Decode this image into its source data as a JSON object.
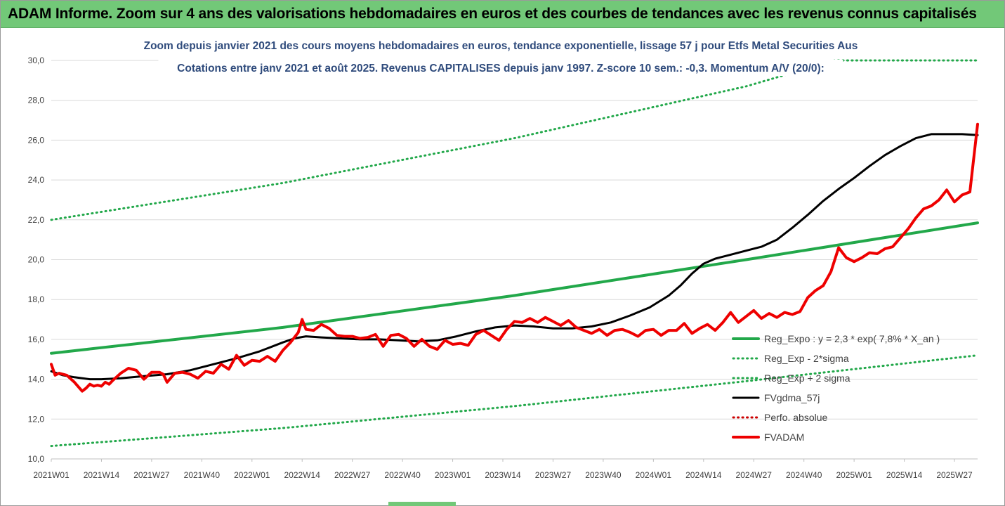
{
  "banner": {
    "title": "ADAM Informe. Zoom sur 4 ans des valorisations hebdomadaires en euros et des courbes de tendances avec les revenus connus capitalisés",
    "color": "#72c878"
  },
  "chart_data": {
    "type": "line",
    "title_line1": "Zoom depuis janvier 2021 des cours moyens hebdomadaires en euros, tendance exponentielle, lissage 57 j pour Etfs Metal Securities Aus",
    "title_line2": "Cotations entre janv 2021 et août 2025.  Revenus CAPITALISES depuis janv 1997. Z-score 10 sem.: -0,3. Momentum A/V (20/0):",
    "xlabel": "",
    "ylabel": "",
    "ylim": [
      10,
      30
    ],
    "yticks": [
      "10,0",
      "12,0",
      "14,0",
      "16,0",
      "18,0",
      "20,0",
      "22,0",
      "24,0",
      "26,0",
      "28,0",
      "30,0"
    ],
    "xlim": [
      0,
      240
    ],
    "xticks": [
      {
        "label": "2021W01",
        "x": 0
      },
      {
        "label": "2021W14",
        "x": 13
      },
      {
        "label": "2021W27",
        "x": 26
      },
      {
        "label": "2021W40",
        "x": 39
      },
      {
        "label": "2022W01",
        "x": 52
      },
      {
        "label": "2022W14",
        "x": 65
      },
      {
        "label": "2022W27",
        "x": 78
      },
      {
        "label": "2022W40",
        "x": 91
      },
      {
        "label": "2023W01",
        "x": 104
      },
      {
        "label": "2023W14",
        "x": 117
      },
      {
        "label": "2023W27",
        "x": 130
      },
      {
        "label": "2023W40",
        "x": 143
      },
      {
        "label": "2024W01",
        "x": 156
      },
      {
        "label": "2024W14",
        "x": 169
      },
      {
        "label": "2024W27",
        "x": 182
      },
      {
        "label": "2024W40",
        "x": 195
      },
      {
        "label": "2025W01",
        "x": 208
      },
      {
        "label": "2025W14",
        "x": 221
      },
      {
        "label": "2025W27",
        "x": 234
      }
    ],
    "grid": true,
    "legend_position": "bottom-right",
    "series": [
      {
        "name": "Reg_Expo : y = 2,3 * exp( 7,8% *  X_an )",
        "color": "#22a84a",
        "style": "solid",
        "x": [
          0,
          60,
          120,
          180,
          240
        ],
        "values": [
          15.3,
          16.6,
          18.2,
          20.0,
          21.85
        ]
      },
      {
        "name": "Reg_Exp - 2*sigma",
        "color": "#22a84a",
        "style": "dotted",
        "x": [
          0,
          60,
          120,
          180,
          240
        ],
        "values": [
          10.65,
          11.55,
          12.65,
          13.9,
          15.2
        ]
      },
      {
        "name": "Reg_Exp + 2 sigma",
        "color": "#22a84a",
        "style": "dotted",
        "x": [
          0,
          60,
          120,
          180,
          203,
          240
        ],
        "values": [
          22.0,
          23.85,
          26.1,
          28.7,
          30.0,
          30.0
        ]
      },
      {
        "name": "FVgdma_57j",
        "color": "#000000",
        "style": "solid",
        "x": [
          0,
          3,
          6,
          10,
          13,
          18,
          24,
          30,
          36,
          42,
          48,
          54,
          60,
          63,
          66,
          70,
          75,
          80,
          85,
          90,
          95,
          100,
          105,
          110,
          115,
          120,
          125,
          130,
          135,
          140,
          145,
          150,
          155,
          160,
          163,
          166,
          169,
          172,
          176,
          180,
          184,
          188,
          192,
          196,
          200,
          204,
          208,
          212,
          216,
          220,
          224,
          228,
          232,
          236,
          240
        ],
        "values": [
          14.4,
          14.2,
          14.1,
          14.0,
          14.0,
          14.05,
          14.15,
          14.25,
          14.45,
          14.75,
          15.05,
          15.4,
          15.85,
          16.05,
          16.15,
          16.1,
          16.05,
          16.0,
          16.0,
          15.95,
          15.9,
          15.95,
          16.15,
          16.4,
          16.6,
          16.7,
          16.65,
          16.55,
          16.55,
          16.65,
          16.85,
          17.2,
          17.6,
          18.2,
          18.7,
          19.3,
          19.8,
          20.05,
          20.25,
          20.45,
          20.65,
          21.0,
          21.6,
          22.25,
          22.95,
          23.55,
          24.1,
          24.7,
          25.25,
          25.7,
          26.1,
          26.3,
          26.3,
          26.3,
          26.25
        ]
      },
      {
        "name": "Perfo. absolue",
        "color": "#cc0000",
        "style": "dotted",
        "x": [],
        "values": []
      },
      {
        "name": "FVADAM",
        "color": "#ee0000",
        "style": "solid",
        "x": [
          0,
          1,
          2,
          4,
          6,
          8,
          9,
          10,
          11,
          12,
          13,
          14,
          15,
          16,
          18,
          20,
          22,
          24,
          26,
          28,
          29,
          30,
          32,
          34,
          36,
          38,
          40,
          42,
          44,
          46,
          48,
          50,
          52,
          54,
          56,
          58,
          60,
          62,
          64,
          65,
          66,
          68,
          70,
          72,
          74,
          76,
          78,
          80,
          82,
          84,
          86,
          88,
          90,
          92,
          94,
          96,
          98,
          100,
          102,
          104,
          106,
          108,
          110,
          112,
          114,
          116,
          118,
          120,
          122,
          124,
          126,
          128,
          130,
          132,
          134,
          136,
          138,
          140,
          142,
          144,
          146,
          148,
          150,
          152,
          154,
          156,
          158,
          160,
          162,
          164,
          166,
          168,
          170,
          172,
          174,
          176,
          178,
          180,
          182,
          184,
          186,
          188,
          190,
          192,
          194,
          196,
          198,
          200,
          202,
          204,
          206,
          208,
          210,
          212,
          214,
          216,
          218,
          220,
          222,
          224,
          226,
          228,
          230,
          232,
          234,
          236,
          238,
          240
        ],
        "values": [
          14.75,
          14.2,
          14.3,
          14.2,
          13.85,
          13.4,
          13.55,
          13.75,
          13.65,
          13.7,
          13.65,
          13.85,
          13.75,
          13.95,
          14.3,
          14.55,
          14.45,
          14.0,
          14.35,
          14.35,
          14.25,
          13.85,
          14.3,
          14.35,
          14.25,
          14.05,
          14.4,
          14.3,
          14.75,
          14.5,
          15.2,
          14.7,
          14.95,
          14.9,
          15.15,
          14.9,
          15.45,
          15.85,
          16.35,
          17.0,
          16.5,
          16.45,
          16.75,
          16.55,
          16.2,
          16.15,
          16.15,
          16.05,
          16.1,
          16.25,
          15.65,
          16.2,
          16.25,
          16.05,
          15.65,
          16.0,
          15.65,
          15.5,
          15.95,
          15.75,
          15.8,
          15.7,
          16.25,
          16.45,
          16.2,
          15.95,
          16.5,
          16.9,
          16.85,
          17.05,
          16.85,
          17.1,
          16.9,
          16.7,
          16.95,
          16.6,
          16.45,
          16.3,
          16.5,
          16.2,
          16.45,
          16.5,
          16.35,
          16.15,
          16.45,
          16.5,
          16.2,
          16.45,
          16.45,
          16.8,
          16.3,
          16.55,
          16.75,
          16.45,
          16.85,
          17.35,
          16.85,
          17.15,
          17.45,
          17.05,
          17.3,
          17.1,
          17.35,
          17.25,
          17.4,
          18.1,
          18.45,
          18.7,
          19.4,
          20.6,
          20.1,
          19.9,
          20.1,
          20.35,
          20.3,
          20.55,
          20.65,
          21.1,
          21.55,
          22.1,
          22.55,
          22.7,
          23.0,
          23.5,
          22.9,
          23.25,
          23.4,
          26.8
        ]
      }
    ]
  }
}
